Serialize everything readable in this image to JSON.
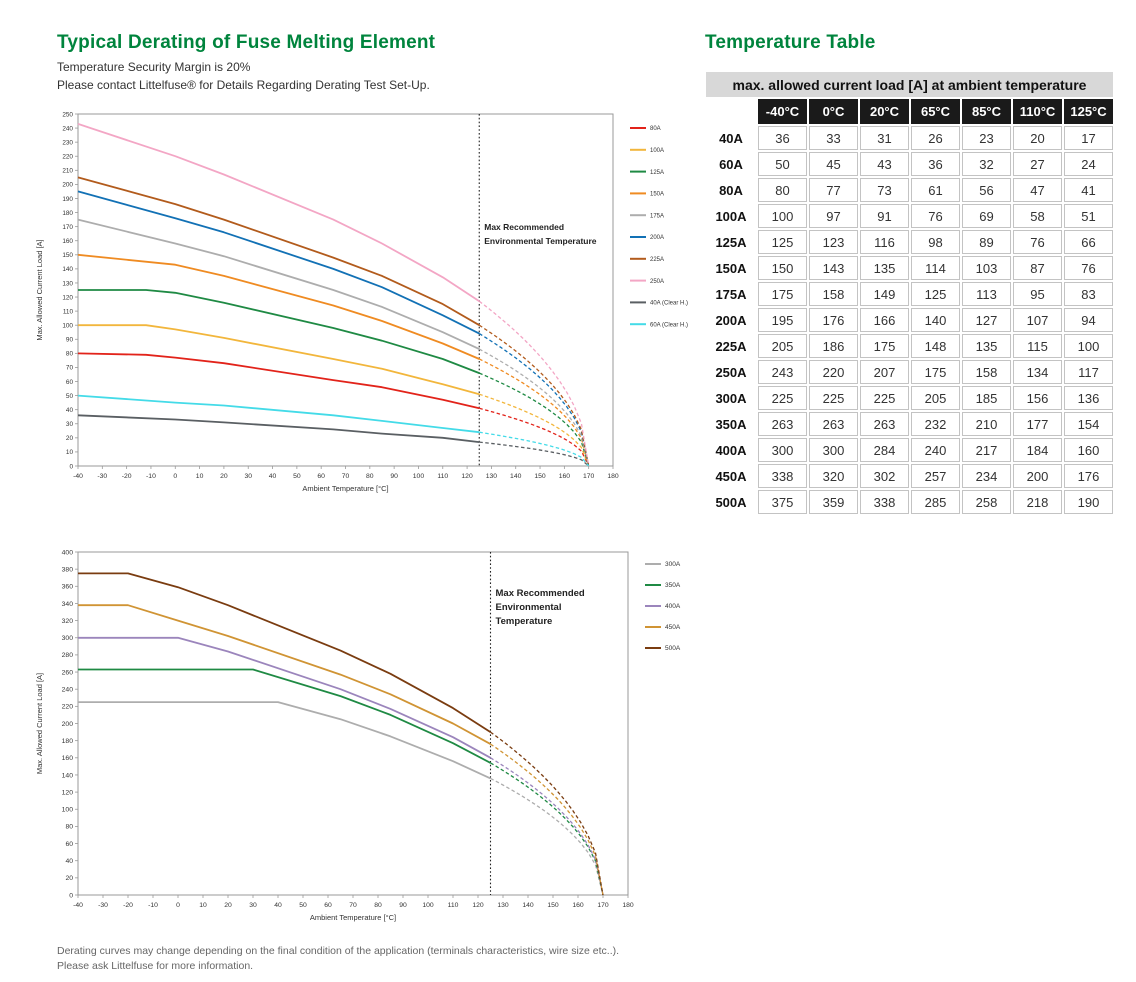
{
  "page": {
    "left_title": "Typical Derating of Fuse Melting Element",
    "subtitle1": "Temperature Security Margin is 20%",
    "subtitle2": "Please contact Littelfuse® for Details Regarding Derating Test Set-Up.",
    "right_title": "Temperature Table",
    "footer1": "Derating curves may change depending on the final condition of the application (terminals characteristics, wire size etc..).",
    "footer2": "Please ask Littelfuse for more information.",
    "accent_green": "#00843d",
    "table_caption_bg": "#d8d8d8",
    "table_header_bg": "#1a1a1a"
  },
  "table": {
    "title": "max. allowed current load [A] at ambient temperature",
    "col_headers": [
      "-40°C",
      "0°C",
      "20°C",
      "65°C",
      "85°C",
      "110°C",
      "125°C"
    ],
    "rows": [
      {
        "label": "40A",
        "values": [
          36,
          33,
          31,
          26,
          23,
          20,
          17
        ]
      },
      {
        "label": "60A",
        "values": [
          50,
          45,
          43,
          36,
          32,
          27,
          24
        ]
      },
      {
        "label": "80A",
        "values": [
          80,
          77,
          73,
          61,
          56,
          47,
          41
        ]
      },
      {
        "label": "100A",
        "values": [
          100,
          97,
          91,
          76,
          69,
          58,
          51
        ]
      },
      {
        "label": "125A",
        "values": [
          125,
          123,
          116,
          98,
          89,
          76,
          66
        ]
      },
      {
        "label": "150A",
        "values": [
          150,
          143,
          135,
          114,
          103,
          87,
          76
        ]
      },
      {
        "label": "175A",
        "values": [
          175,
          158,
          149,
          125,
          113,
          95,
          83
        ]
      },
      {
        "label": "200A",
        "values": [
          195,
          176,
          166,
          140,
          127,
          107,
          94
        ]
      },
      {
        "label": "225A",
        "values": [
          205,
          186,
          175,
          148,
          135,
          115,
          100
        ]
      },
      {
        "label": "250A",
        "values": [
          243,
          220,
          207,
          175,
          158,
          134,
          117
        ]
      },
      {
        "label": "300A",
        "values": [
          225,
          225,
          225,
          205,
          185,
          156,
          136
        ]
      },
      {
        "label": "350A",
        "values": [
          263,
          263,
          263,
          232,
          210,
          177,
          154
        ]
      },
      {
        "label": "400A",
        "values": [
          300,
          300,
          284,
          240,
          217,
          184,
          160
        ]
      },
      {
        "label": "450A",
        "values": [
          338,
          320,
          302,
          257,
          234,
          200,
          176
        ]
      },
      {
        "label": "500A",
        "values": [
          375,
          359,
          338,
          285,
          258,
          218,
          190
        ]
      }
    ]
  },
  "chart_data": [
    {
      "type": "line",
      "xlabel": "Ambient Temperature [°C]",
      "ylabel": "Max. Allowed Current Load [A]",
      "xlim": [
        -40,
        180
      ],
      "xstep": 10,
      "ylim": [
        0,
        250
      ],
      "ystep": 10,
      "grid": false,
      "legend_position": "right",
      "vline": {
        "x": 125,
        "label_lines": [
          "Max Recommended",
          "Environmental Temperature"
        ]
      },
      "fade_to_zero_at": 170,
      "series": [
        {
          "name": "80A",
          "color": "#e2231a",
          "points": [
            [
              -40,
              80
            ],
            [
              -12,
              79
            ],
            [
              0,
              77
            ],
            [
              20,
              73
            ],
            [
              65,
              61
            ],
            [
              85,
              56
            ],
            [
              110,
              47
            ],
            [
              125,
              41
            ]
          ]
        },
        {
          "name": "100A",
          "color": "#f2b63c",
          "points": [
            [
              -40,
              100
            ],
            [
              -12,
              100
            ],
            [
              0,
              97
            ],
            [
              20,
              91
            ],
            [
              65,
              76
            ],
            [
              85,
              69
            ],
            [
              110,
              58
            ],
            [
              125,
              51
            ]
          ]
        },
        {
          "name": "125A",
          "color": "#1f8a44",
          "points": [
            [
              -40,
              125
            ],
            [
              -12,
              125
            ],
            [
              0,
              123
            ],
            [
              20,
              116
            ],
            [
              65,
              98
            ],
            [
              85,
              89
            ],
            [
              110,
              76
            ],
            [
              125,
              66
            ]
          ]
        },
        {
          "name": "150A",
          "color": "#ef8b22",
          "points": [
            [
              -40,
              150
            ],
            [
              0,
              143
            ],
            [
              20,
              135
            ],
            [
              65,
              114
            ],
            [
              85,
              103
            ],
            [
              110,
              87
            ],
            [
              125,
              76
            ]
          ]
        },
        {
          "name": "175A",
          "color": "#adadad",
          "points": [
            [
              -40,
              175
            ],
            [
              0,
              158
            ],
            [
              20,
              149
            ],
            [
              65,
              125
            ],
            [
              85,
              113
            ],
            [
              110,
              95
            ],
            [
              125,
              83
            ]
          ]
        },
        {
          "name": "200A",
          "color": "#1271b5",
          "points": [
            [
              -40,
              195
            ],
            [
              0,
              176
            ],
            [
              20,
              166
            ],
            [
              65,
              140
            ],
            [
              85,
              127
            ],
            [
              110,
              107
            ],
            [
              125,
              94
            ]
          ]
        },
        {
          "name": "225A",
          "color": "#b25b1c",
          "points": [
            [
              -40,
              205
            ],
            [
              0,
              186
            ],
            [
              20,
              175
            ],
            [
              65,
              148
            ],
            [
              85,
              135
            ],
            [
              110,
              115
            ],
            [
              125,
              100
            ]
          ]
        },
        {
          "name": "250A",
          "color": "#f3a6c5",
          "points": [
            [
              -40,
              243
            ],
            [
              0,
              220
            ],
            [
              20,
              207
            ],
            [
              65,
              175
            ],
            [
              85,
              158
            ],
            [
              110,
              134
            ],
            [
              125,
              117
            ]
          ]
        },
        {
          "name": "40A (Clear H.)",
          "color": "#5a5f63",
          "points": [
            [
              -40,
              36
            ],
            [
              0,
              33
            ],
            [
              20,
              31
            ],
            [
              65,
              26
            ],
            [
              85,
              23
            ],
            [
              110,
              20
            ],
            [
              125,
              17
            ]
          ]
        },
        {
          "name": "60A (Clear H.)",
          "color": "#44dbe8",
          "points": [
            [
              -40,
              50
            ],
            [
              0,
              45
            ],
            [
              20,
              43
            ],
            [
              65,
              36
            ],
            [
              85,
              32
            ],
            [
              110,
              27
            ],
            [
              125,
              24
            ]
          ]
        }
      ]
    },
    {
      "type": "line",
      "xlabel": "Ambient Temperature [°C]",
      "ylabel": "Max. Allowed Current Load [A]",
      "xlim": [
        -40,
        180
      ],
      "xstep": 10,
      "ylim": [
        0,
        400
      ],
      "ystep": 20,
      "grid": false,
      "legend_position": "right",
      "vline": {
        "x": 125,
        "label_lines": [
          "Max Recommended",
          "Environmental",
          "Temperature"
        ]
      },
      "fade_to_zero_at": 170,
      "series": [
        {
          "name": "300A",
          "color": "#adadad",
          "points": [
            [
              -40,
              225
            ],
            [
              40,
              225
            ],
            [
              65,
              205
            ],
            [
              85,
              185
            ],
            [
              110,
              156
            ],
            [
              125,
              136
            ]
          ]
        },
        {
          "name": "350A",
          "color": "#1f8a44",
          "points": [
            [
              -40,
              263
            ],
            [
              30,
              263
            ],
            [
              65,
              232
            ],
            [
              85,
              210
            ],
            [
              110,
              177
            ],
            [
              125,
              154
            ]
          ]
        },
        {
          "name": "400A",
          "color": "#9b85bc",
          "points": [
            [
              -40,
              300
            ],
            [
              0,
              300
            ],
            [
              20,
              284
            ],
            [
              65,
              240
            ],
            [
              85,
              217
            ],
            [
              110,
              184
            ],
            [
              125,
              160
            ]
          ]
        },
        {
          "name": "450A",
          "color": "#d09434",
          "points": [
            [
              -40,
              338
            ],
            [
              -20,
              338
            ],
            [
              0,
              320
            ],
            [
              20,
              302
            ],
            [
              65,
              257
            ],
            [
              85,
              234
            ],
            [
              110,
              200
            ],
            [
              125,
              176
            ]
          ]
        },
        {
          "name": "500A",
          "color": "#7a3c10",
          "points": [
            [
              -40,
              375
            ],
            [
              -20,
              375
            ],
            [
              0,
              359
            ],
            [
              20,
              338
            ],
            [
              65,
              285
            ],
            [
              85,
              258
            ],
            [
              110,
              218
            ],
            [
              125,
              190
            ]
          ]
        }
      ]
    }
  ]
}
